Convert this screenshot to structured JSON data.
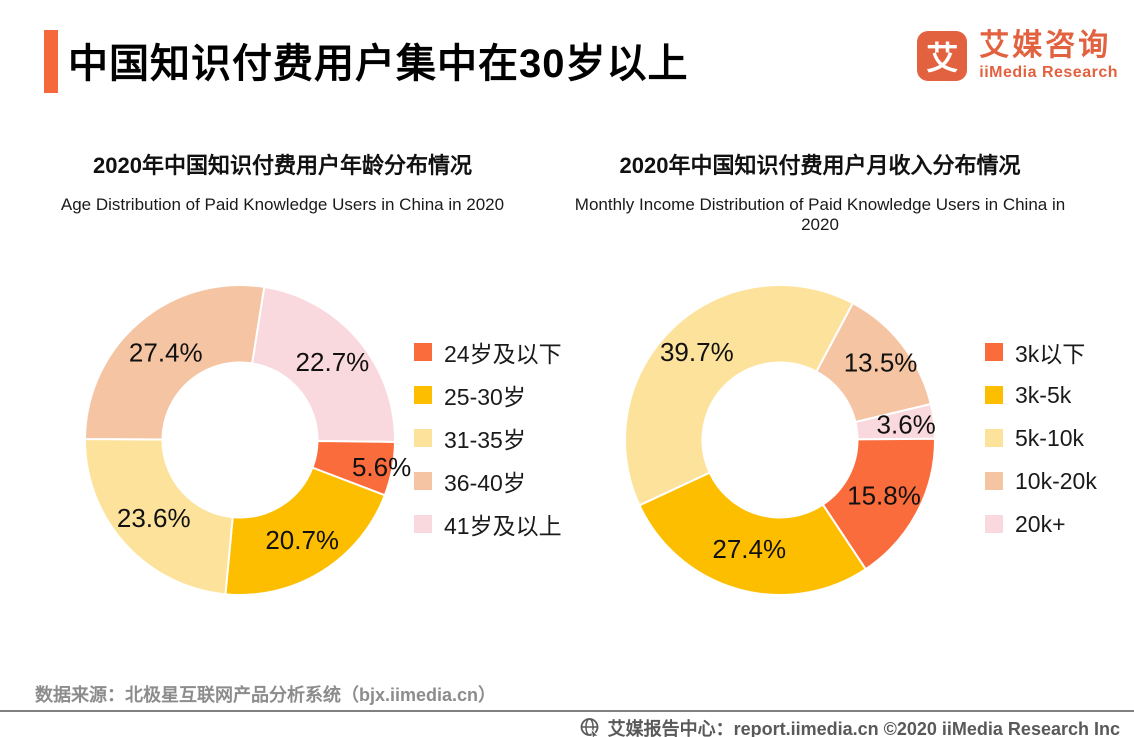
{
  "header": {
    "title": "中国知识付费用户集中在30岁以上",
    "accent_color": "#F4683C"
  },
  "logo": {
    "glyph": "艾",
    "name_cn": "艾媒咨询",
    "name_en": "iiMedia Research",
    "color": "#E2613F"
  },
  "chart_data": [
    {
      "type": "pie",
      "variant": "donut",
      "title": "2020年中国知识付费用户年龄分布情况",
      "subtitle": "Age Distribution of Paid Knowledge Users in China in 2020",
      "unit": "%",
      "legend_position": "right",
      "segments": [
        {
          "label": "24岁及以下",
          "value": 5.6,
          "color": "#FB6C3C"
        },
        {
          "label": "25-30岁",
          "value": 20.7,
          "color": "#FDBE00"
        },
        {
          "label": "31-35岁",
          "value": 23.6,
          "color": "#FDE29B"
        },
        {
          "label": "36-40岁",
          "value": 27.4,
          "color": "#F5C5A3"
        },
        {
          "label": "41岁及以上",
          "value": 22.7,
          "color": "#FAD9DE"
        }
      ],
      "layout": {
        "start_angle_deg": 9,
        "order_clockwise_from_top": [
          "41岁及以上",
          "24岁及以下",
          "25-30岁",
          "31-35岁",
          "36-40岁"
        ],
        "label_radius_frac": {
          "41岁及以上": 0.78,
          "24岁及以下": 0.93,
          "25-30岁": 0.76,
          "31-35岁": 0.75,
          "36-40岁": 0.74
        },
        "inner_radius_frac": 0.5
      }
    },
    {
      "type": "pie",
      "variant": "donut",
      "title": "2020年中国知识付费用户月收入分布情况",
      "subtitle": "Monthly Income Distribution of Paid Knowledge Users  in China in 2020",
      "unit": "%",
      "legend_position": "right",
      "segments": [
        {
          "label": "3k以下",
          "value": 15.8,
          "color": "#FB6C3C"
        },
        {
          "label": "3k-5k",
          "value": 27.4,
          "color": "#FDBE00"
        },
        {
          "label": "5k-10k",
          "value": 39.7,
          "color": "#FDE29B"
        },
        {
          "label": "10k-20k",
          "value": 13.5,
          "color": "#F5C5A3"
        },
        {
          "label": "20k+",
          "value": 3.6,
          "color": "#FAD9DE"
        }
      ],
      "layout": {
        "start_angle_deg": 28,
        "order_clockwise_from_top": [
          "10k-20k",
          "20k+",
          "3k以下",
          "3k-5k",
          "5k-10k"
        ],
        "label_radius_frac": {
          "10k-20k": 0.82,
          "20k+": 0.82,
          "3k以下": 0.76,
          "3k-5k": 0.73,
          "5k-10k": 0.78
        },
        "inner_radius_frac": 0.5
      }
    }
  ],
  "source": {
    "text": "数据来源：北极星互联网产品分析系统（bjx.iimedia.cn）"
  },
  "footer": {
    "icon": "globe-cursor",
    "text": "艾媒报告中心：report.iimedia.cn ©2020  iiMedia Research Inc"
  }
}
